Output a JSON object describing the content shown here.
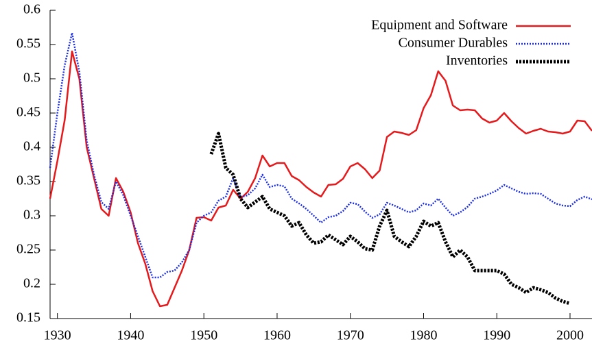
{
  "chart_data": {
    "type": "line",
    "x": [
      1929,
      1930,
      1931,
      1932,
      1933,
      1934,
      1935,
      1936,
      1937,
      1938,
      1939,
      1940,
      1941,
      1942,
      1943,
      1944,
      1945,
      1946,
      1947,
      1948,
      1949,
      1950,
      1951,
      1952,
      1953,
      1954,
      1955,
      1956,
      1957,
      1958,
      1959,
      1960,
      1961,
      1962,
      1963,
      1964,
      1965,
      1966,
      1967,
      1968,
      1969,
      1970,
      1971,
      1972,
      1973,
      1974,
      1975,
      1976,
      1977,
      1978,
      1979,
      1980,
      1981,
      1982,
      1983,
      1984,
      1985,
      1986,
      1987,
      1988,
      1989,
      1990,
      1991,
      1992,
      1993,
      1994,
      1995,
      1996,
      1997,
      1998,
      1999,
      2000,
      2001,
      2002,
      2003
    ],
    "series": [
      {
        "name": "Equipment and Software",
        "color": "#e41a1c",
        "values": [
          0.325,
          0.38,
          0.44,
          0.54,
          0.5,
          0.4,
          0.355,
          0.31,
          0.3,
          0.355,
          0.335,
          0.305,
          0.26,
          0.23,
          0.19,
          0.168,
          0.17,
          0.195,
          0.22,
          0.25,
          0.297,
          0.298,
          0.293,
          0.312,
          0.315,
          0.338,
          0.325,
          0.335,
          0.355,
          0.388,
          0.372,
          0.377,
          0.377,
          0.358,
          0.352,
          0.342,
          0.334,
          0.328,
          0.345,
          0.346,
          0.354,
          0.372,
          0.377,
          0.368,
          0.355,
          0.366,
          0.415,
          0.423,
          0.421,
          0.418,
          0.425,
          0.457,
          0.476,
          0.511,
          0.497,
          0.461,
          0.454,
          0.455,
          0.454,
          0.442,
          0.436,
          0.439,
          0.45,
          0.438,
          0.428,
          0.42,
          0.424,
          0.427,
          0.423,
          0.422,
          0.42,
          0.423,
          0.439,
          0.438,
          0.424
        ]
      },
      {
        "name": "Consumer Durables",
        "color": "#1c2fe4",
        "values": [
          0.37,
          0.45,
          0.52,
          0.567,
          0.51,
          0.41,
          0.36,
          0.32,
          0.31,
          0.35,
          0.33,
          0.3,
          0.27,
          0.24,
          0.21,
          0.21,
          0.218,
          0.22,
          0.232,
          0.25,
          0.29,
          0.3,
          0.305,
          0.322,
          0.328,
          0.355,
          0.327,
          0.33,
          0.34,
          0.36,
          0.342,
          0.345,
          0.343,
          0.325,
          0.318,
          0.31,
          0.3,
          0.29,
          0.298,
          0.3,
          0.307,
          0.319,
          0.317,
          0.306,
          0.297,
          0.302,
          0.319,
          0.315,
          0.31,
          0.305,
          0.308,
          0.318,
          0.315,
          0.325,
          0.312,
          0.3,
          0.305,
          0.313,
          0.325,
          0.328,
          0.332,
          0.337,
          0.345,
          0.34,
          0.335,
          0.332,
          0.333,
          0.332,
          0.325,
          0.318,
          0.315,
          0.314,
          0.323,
          0.328,
          0.324
        ]
      },
      {
        "name": "Inventories",
        "color": "#000000",
        "values": [
          null,
          null,
          null,
          null,
          null,
          null,
          null,
          null,
          null,
          null,
          null,
          null,
          null,
          null,
          null,
          null,
          null,
          null,
          null,
          null,
          null,
          null,
          0.39,
          0.42,
          0.37,
          0.36,
          0.325,
          0.312,
          0.32,
          0.328,
          0.31,
          0.305,
          0.3,
          0.285,
          0.29,
          0.272,
          0.26,
          0.262,
          0.272,
          0.265,
          0.258,
          0.27,
          0.262,
          0.252,
          0.25,
          0.285,
          0.308,
          0.27,
          0.262,
          0.255,
          0.27,
          0.292,
          0.285,
          0.29,
          0.262,
          0.24,
          0.25,
          0.24,
          0.22,
          0.22,
          0.22,
          0.22,
          0.215,
          0.2,
          0.195,
          0.188,
          0.195,
          0.192,
          0.188,
          0.18,
          0.175,
          0.172,
          null,
          null,
          null
        ]
      }
    ],
    "xlim": [
      1929,
      2003
    ],
    "xticks": [
      1930,
      1940,
      1950,
      1960,
      1970,
      1980,
      1990,
      2000
    ],
    "ylim": [
      0.15,
      0.6
    ],
    "yticks": [
      0.15,
      0.2,
      0.25,
      0.3,
      0.35,
      0.4,
      0.45,
      0.5,
      0.55,
      0.6
    ],
    "legend": "upper right"
  }
}
